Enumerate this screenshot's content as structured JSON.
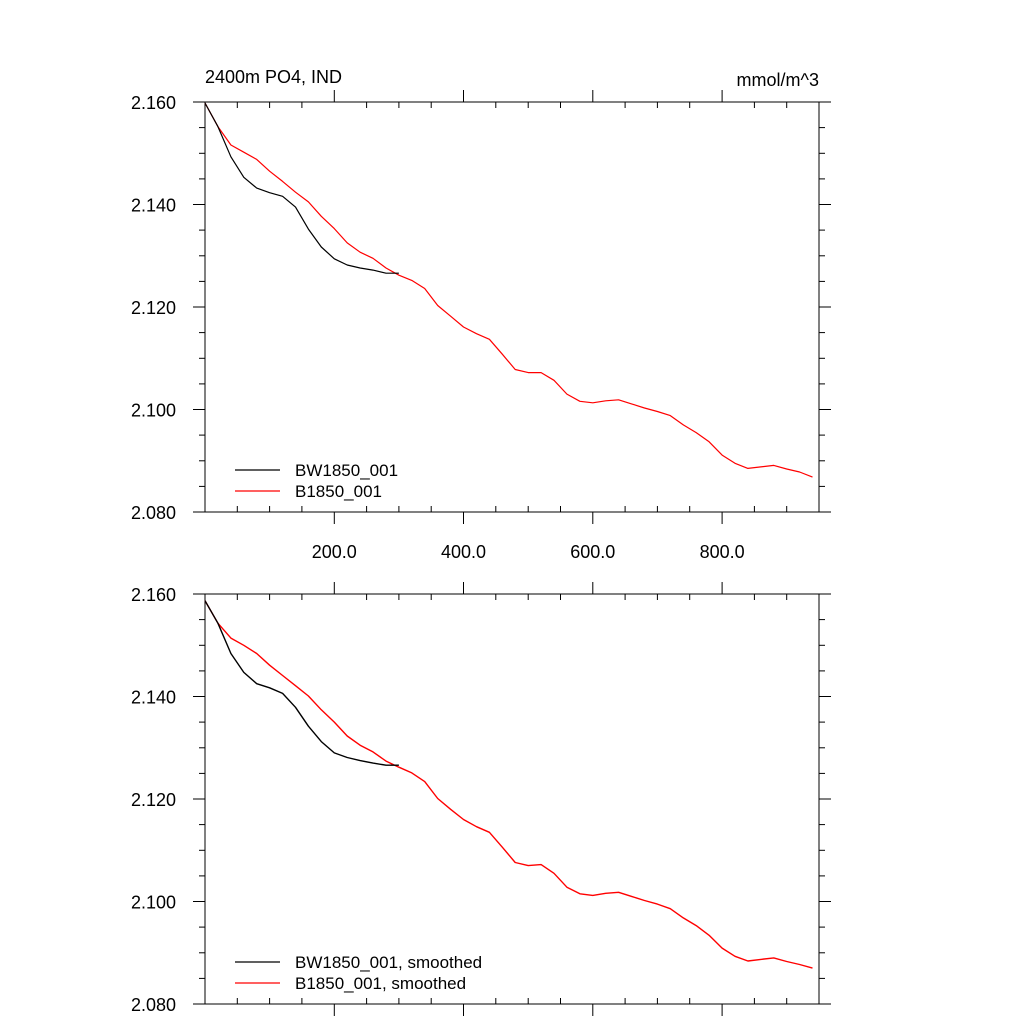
{
  "chart_data": [
    {
      "type": "line",
      "title": "2400m PO4, IND",
      "units": "mmol/m^3",
      "xlim": [
        0,
        950
      ],
      "ylim": [
        2.08,
        2.16
      ],
      "xticks": [
        200,
        400,
        600,
        800
      ],
      "xtick_labels": [
        "200.0",
        "400.0",
        "600.0",
        "800.0"
      ],
      "yticks": [
        2.08,
        2.1,
        2.12,
        2.14,
        2.16
      ],
      "ytick_labels": [
        "2.080",
        "2.100",
        "2.120",
        "2.140",
        "2.160"
      ],
      "legend_position": "bottom-left",
      "series": [
        {
          "name": "BW1850_001",
          "color": "#000000",
          "x": [
            0,
            20,
            40,
            60,
            80,
            100,
            120,
            140,
            160,
            180,
            200,
            220,
            240,
            260,
            280,
            300
          ],
          "y": [
            2.1598,
            2.1552,
            2.1493,
            2.1453,
            2.1432,
            2.1423,
            2.1416,
            2.1395,
            2.1352,
            2.1317,
            2.1294,
            2.1282,
            2.1276,
            2.1272,
            2.1266,
            2.1266
          ]
        },
        {
          "name": "B1850_001",
          "color": "#ff0000",
          "x": [
            0,
            20,
            40,
            60,
            80,
            100,
            120,
            140,
            160,
            180,
            200,
            220,
            240,
            260,
            280,
            300,
            320,
            340,
            360,
            380,
            400,
            420,
            440,
            460,
            480,
            500,
            520,
            540,
            560,
            580,
            600,
            620,
            640,
            660,
            680,
            700,
            720,
            740,
            760,
            780,
            800,
            820,
            840,
            860,
            880,
            900,
            920,
            940
          ],
          "y": [
            2.1598,
            2.1552,
            2.1516,
            2.1502,
            2.1488,
            2.1465,
            2.1445,
            2.1424,
            2.1405,
            2.1377,
            2.1353,
            2.1325,
            2.1307,
            2.1295,
            2.1276,
            2.1262,
            2.1252,
            2.1236,
            2.1203,
            2.1182,
            2.1161,
            2.1148,
            2.1137,
            2.1108,
            2.1078,
            2.1072,
            2.1072,
            2.1057,
            2.103,
            2.1016,
            2.1013,
            2.1017,
            2.1019,
            2.1011,
            2.1003,
            2.0996,
            2.0988,
            2.097,
            2.0955,
            2.0937,
            2.0911,
            2.0895,
            2.0885,
            2.0888,
            2.0891,
            2.0884,
            2.0878,
            2.0868
          ]
        }
      ]
    },
    {
      "type": "line",
      "title": "",
      "units": "",
      "xlim": [
        0,
        950
      ],
      "ylim": [
        2.08,
        2.16
      ],
      "xticks": [
        200,
        400,
        600,
        800
      ],
      "xtick_labels": [],
      "yticks": [
        2.08,
        2.1,
        2.12,
        2.14,
        2.16
      ],
      "ytick_labels": [
        "2.080",
        "2.100",
        "2.120",
        "2.140",
        "2.160"
      ],
      "legend_position": "bottom-left",
      "series": [
        {
          "name": "BW1850_001, smoothed",
          "color": "#000000",
          "x": [
            0,
            20,
            40,
            60,
            80,
            100,
            120,
            140,
            160,
            180,
            200,
            220,
            240,
            260,
            280,
            300
          ],
          "y": [
            2.1587,
            2.1543,
            2.1484,
            2.1447,
            2.1425,
            2.1417,
            2.1406,
            2.1379,
            2.1342,
            2.1312,
            2.129,
            2.1281,
            2.1275,
            2.127,
            2.1266,
            2.1266
          ]
        },
        {
          "name": "B1850_001, smoothed",
          "color": "#ff0000",
          "x": [
            0,
            20,
            40,
            60,
            80,
            100,
            120,
            140,
            160,
            180,
            200,
            220,
            240,
            260,
            280,
            300,
            320,
            340,
            360,
            380,
            400,
            420,
            440,
            460,
            480,
            500,
            520,
            540,
            560,
            580,
            600,
            620,
            640,
            660,
            680,
            700,
            720,
            740,
            760,
            780,
            800,
            820,
            840,
            860,
            880,
            900,
            920,
            940
          ],
          "y": [
            2.1587,
            2.1543,
            2.1514,
            2.15,
            2.1484,
            2.1461,
            2.1441,
            2.1421,
            2.1401,
            2.1374,
            2.135,
            2.1323,
            2.1305,
            2.1292,
            2.1274,
            2.1262,
            2.1251,
            2.1234,
            2.1201,
            2.118,
            2.116,
            2.1146,
            2.1135,
            2.1106,
            2.1076,
            2.107,
            2.1072,
            2.1055,
            2.1028,
            2.1015,
            2.1012,
            2.1016,
            2.1018,
            2.101,
            2.1002,
            2.0995,
            2.0986,
            2.0968,
            2.0953,
            2.0934,
            2.0909,
            2.0893,
            2.0884,
            2.0887,
            2.089,
            2.0883,
            2.0877,
            2.087
          ]
        }
      ]
    }
  ]
}
